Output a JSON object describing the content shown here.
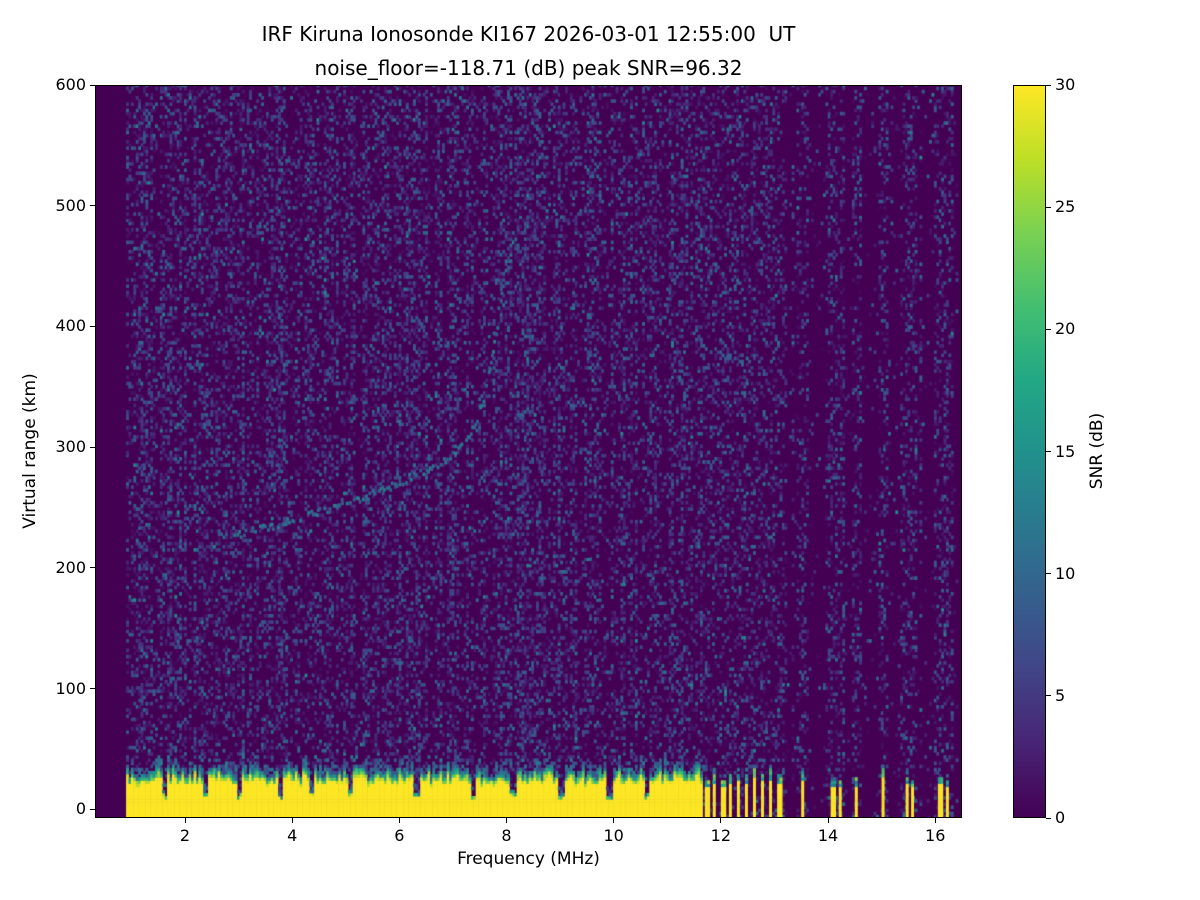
{
  "title": {
    "line1": "IRF Kiruna Ionosonde KI167 2026-03-01 12:55:00  UT",
    "line2": "noise_floor=-118.71 (dB) peak SNR=96.32"
  },
  "axes": {
    "x": {
      "label": "Frequency (MHz)",
      "ticks": [
        2,
        4,
        6,
        8,
        10,
        12,
        14,
        16
      ],
      "min": 0.32,
      "max": 16.5
    },
    "y": {
      "label": "Virtual range (km)",
      "ticks": [
        0,
        100,
        200,
        300,
        400,
        500,
        600
      ],
      "min": -7.2,
      "max": 600
    }
  },
  "colorbar": {
    "label": "SNR (dB)",
    "ticks": [
      0,
      5,
      10,
      15,
      20,
      25,
      30
    ],
    "min": 0,
    "max": 30
  },
  "chart_data": {
    "type": "heatmap",
    "title": "IRF Kiruna Ionosonde KI167 2026-03-01 12:55:00  UT\nnoise_floor=-118.71 (dB) peak SNR=96.32",
    "station": "IRF Kiruna Ionosonde KI167",
    "timestamp_ut": "2026-03-01 12:55:00",
    "noise_floor_db": -118.71,
    "peak_snr_db": 96.32,
    "xlabel": "Frequency (MHz)",
    "ylabel": "Virtual range (km)",
    "value_label": "SNR (dB)",
    "value_range": [
      0,
      30
    ],
    "xlim": [
      0.32,
      16.5
    ],
    "ylim": [
      -7.2,
      600
    ],
    "data_freq_range_mhz": [
      0.9,
      16.38
    ],
    "colormap": "viridis",
    "colormap_stops": [
      [
        0.0,
        "#440154"
      ],
      [
        0.1,
        "#482475"
      ],
      [
        0.2,
        "#414487"
      ],
      [
        0.3,
        "#355f8d"
      ],
      [
        0.4,
        "#2a788e"
      ],
      [
        0.5,
        "#21918c"
      ],
      [
        0.6,
        "#22a884"
      ],
      [
        0.7,
        "#44bf70"
      ],
      [
        0.8,
        "#7ad151"
      ],
      [
        0.9,
        "#bddf26"
      ],
      [
        1.0,
        "#fde725"
      ]
    ],
    "features": {
      "ground_clutter": {
        "freq_range_mhz": [
          0.9,
          11.62
        ],
        "top_km_mean": 31,
        "top_km_variation": [
          22,
          40
        ],
        "snr_db": 30,
        "notch_freqs_mhz": [
          1.6,
          2.35,
          3.0,
          3.75,
          4.35,
          5.05,
          6.3,
          7.35,
          8.1,
          9.0,
          9.9,
          10.6
        ]
      },
      "rfi_bars": {
        "freqs_mhz": [
          11.7,
          11.85,
          12.0,
          12.15,
          12.3,
          12.45,
          12.6,
          12.75,
          12.9,
          13.05,
          13.5,
          14.05,
          14.2,
          14.5,
          15.0,
          15.45,
          15.55,
          16.05,
          16.2
        ],
        "height_km_range": [
          20,
          34
        ],
        "snr_db": 30
      },
      "noise_speckle": {
        "snr_range_db": [
          1,
          14
        ],
        "density_left": 0.3,
        "density_right": 0.12,
        "boundary_mhz": 11.62
      },
      "echo_trace": {
        "snr_db": 9,
        "points_mhz_km": [
          [
            2.9,
            226
          ],
          [
            3.5,
            232
          ],
          [
            4.1,
            240
          ],
          [
            4.7,
            248
          ],
          [
            5.3,
            257
          ],
          [
            5.9,
            268
          ],
          [
            6.4,
            278
          ],
          [
            6.9,
            290
          ],
          [
            7.2,
            302
          ],
          [
            7.4,
            318
          ],
          [
            7.55,
            338
          ],
          [
            7.65,
            360
          ],
          [
            7.75,
            385
          ],
          [
            7.85,
            410
          ],
          [
            7.9,
            430
          ]
        ]
      }
    },
    "seed": 42
  }
}
